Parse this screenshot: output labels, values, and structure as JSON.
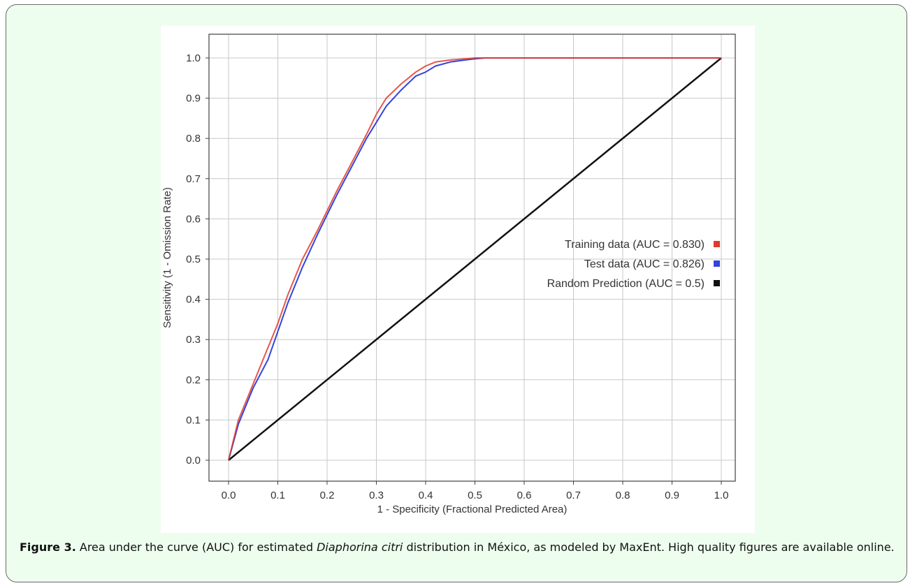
{
  "caption": {
    "lead": "Figure 3.",
    "part1": " Area under the curve (AUC) for estimated ",
    "species": "Diaphorina citri",
    "part2": " distribution in México, as modeled by MaxEnt. High quality figures are available online."
  },
  "chart_data": {
    "type": "line",
    "xlabel": "1 - Specificity  (Fractional Predicted Area)",
    "ylabel": "Sensitivity  (1 - Omission Rate)",
    "xlim": [
      0,
      1
    ],
    "ylim": [
      0,
      1
    ],
    "xticks": [
      "0.0",
      "0.1",
      "0.2",
      "0.3",
      "0.4",
      "0.5",
      "0.6",
      "0.7",
      "0.8",
      "0.9",
      "1.0"
    ],
    "yticks": [
      "0.0",
      "0.1",
      "0.2",
      "0.3",
      "0.4",
      "0.5",
      "0.6",
      "0.7",
      "0.8",
      "0.9",
      "1.0"
    ],
    "grid": true,
    "legend_position": "right-middle",
    "series": [
      {
        "name": "Test data (AUC = 0.826)",
        "color": "#3344dd",
        "x": [
          0,
          0.02,
          0.05,
          0.08,
          0.1,
          0.12,
          0.15,
          0.18,
          0.2,
          0.22,
          0.25,
          0.28,
          0.3,
          0.32,
          0.35,
          0.38,
          0.4,
          0.42,
          0.45,
          0.48,
          0.5,
          0.52,
          0.6,
          0.8,
          1.0
        ],
        "y": [
          0,
          0.09,
          0.18,
          0.25,
          0.32,
          0.39,
          0.48,
          0.56,
          0.61,
          0.66,
          0.73,
          0.8,
          0.84,
          0.88,
          0.92,
          0.955,
          0.965,
          0.98,
          0.99,
          0.995,
          0.998,
          1.0,
          1.0,
          1.0,
          1.0
        ]
      },
      {
        "name": "Training data (AUC = 0.830)",
        "color": "#e23a2a",
        "x": [
          0,
          0.02,
          0.05,
          0.08,
          0.1,
          0.12,
          0.15,
          0.18,
          0.2,
          0.22,
          0.25,
          0.28,
          0.3,
          0.32,
          0.35,
          0.38,
          0.4,
          0.42,
          0.45,
          0.48,
          0.5,
          0.52,
          0.6,
          0.8,
          1.0
        ],
        "y": [
          0,
          0.1,
          0.19,
          0.28,
          0.34,
          0.41,
          0.5,
          0.57,
          0.62,
          0.67,
          0.74,
          0.81,
          0.86,
          0.9,
          0.935,
          0.965,
          0.98,
          0.99,
          0.995,
          0.998,
          1.0,
          1.0,
          1.0,
          1.0,
          1.0
        ]
      },
      {
        "name": "Random Prediction (AUC = 0.5)",
        "color": "#111111",
        "x": [
          0,
          1
        ],
        "y": [
          0,
          1
        ]
      }
    ],
    "legend_order": [
      1,
      0,
      2
    ]
  }
}
